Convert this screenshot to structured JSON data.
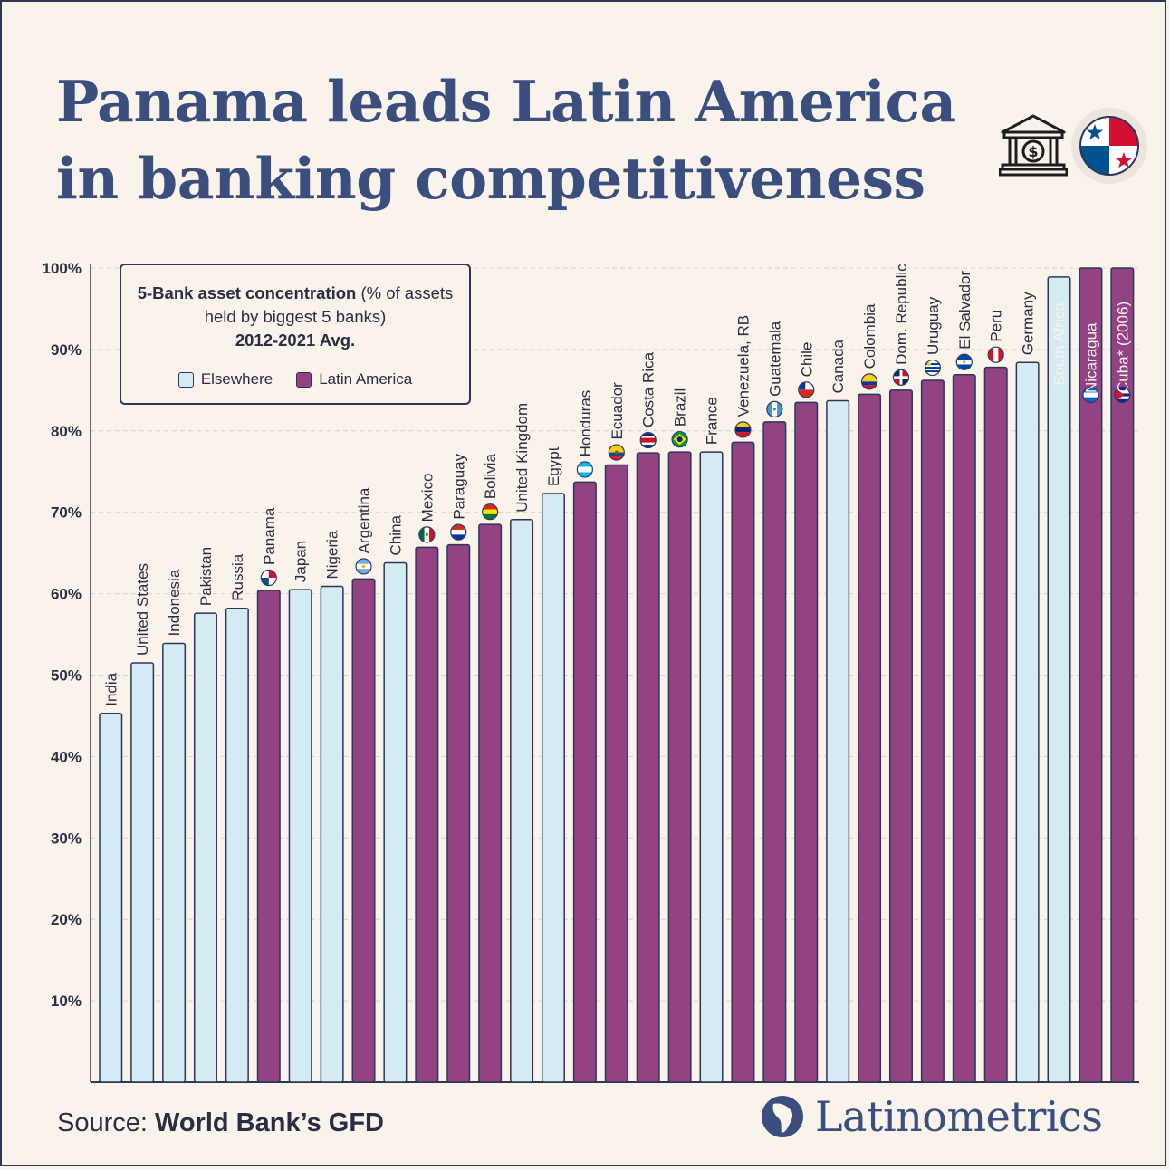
{
  "header": {
    "title_line1": "Panama leads Latin America",
    "title_line2": "in banking competitiveness"
  },
  "icons": [
    "bank-building-dollar-icon",
    "panama-flag-icon"
  ],
  "legend": {
    "title_bold": "5-Bank asset concentration",
    "title_rest": " (% of assets held by biggest 5 banks)",
    "period": "2012-2021 Avg.",
    "items": [
      {
        "label": "Elsewhere",
        "color": "#d4ebf3"
      },
      {
        "label": "Latin America",
        "color": "#934283"
      }
    ]
  },
  "footer": {
    "source_prefix": "Source: ",
    "source_name": "World Bank’s GFD",
    "brand": "Latinometrics"
  },
  "colors": {
    "elsewhere": "#d4ebf3",
    "latin_america": "#934283",
    "outline": "#2d3658",
    "background": "#faf3ec",
    "title": "#3b4f7f"
  },
  "chart_data": {
    "type": "bar",
    "ylim": [
      0,
      100
    ],
    "yticks": [
      "10%",
      "20%",
      "30%",
      "40%",
      "50%",
      "60%",
      "70%",
      "80%",
      "90%",
      "100%"
    ],
    "grid": true,
    "legend_position": "top-left",
    "categories": [
      "India",
      "United States",
      "Indonesia",
      "Pakistan",
      "Russia",
      "Panama",
      "Japan",
      "Nigeria",
      "Argentina",
      "China",
      "Mexico",
      "Paraguay",
      "Bolivia",
      "United Kingdom",
      "Egypt",
      "Honduras",
      "Ecuador",
      "Costa Rica",
      "Brazil",
      "France",
      "Venezuela, RB",
      "Guatemala",
      "Chile",
      "Canada",
      "Colombia",
      "Dom. Republic",
      "Uruguay",
      "El Salvador",
      "Peru",
      "Germany",
      "South Africa",
      "Nicaragua",
      "Cuba* (2006)"
    ],
    "values": [
      45.3,
      51.5,
      53.9,
      57.6,
      58.2,
      60.4,
      60.5,
      60.9,
      61.8,
      63.8,
      65.7,
      66.0,
      68.5,
      69.1,
      72.3,
      73.7,
      75.8,
      77.3,
      77.4,
      77.4,
      78.6,
      81.1,
      83.5,
      83.7,
      84.5,
      85.0,
      86.2,
      86.9,
      87.8,
      88.4,
      98.9,
      100.0,
      100.0
    ],
    "group": [
      "Elsewhere",
      "Elsewhere",
      "Elsewhere",
      "Elsewhere",
      "Elsewhere",
      "Latin America",
      "Elsewhere",
      "Elsewhere",
      "Latin America",
      "Elsewhere",
      "Latin America",
      "Latin America",
      "Latin America",
      "Elsewhere",
      "Elsewhere",
      "Latin America",
      "Latin America",
      "Latin America",
      "Latin America",
      "Elsewhere",
      "Latin America",
      "Latin America",
      "Latin America",
      "Elsewhere",
      "Latin America",
      "Latin America",
      "Latin America",
      "Latin America",
      "Latin America",
      "Elsewhere",
      "Elsewhere",
      "Latin America",
      "Latin America"
    ]
  }
}
